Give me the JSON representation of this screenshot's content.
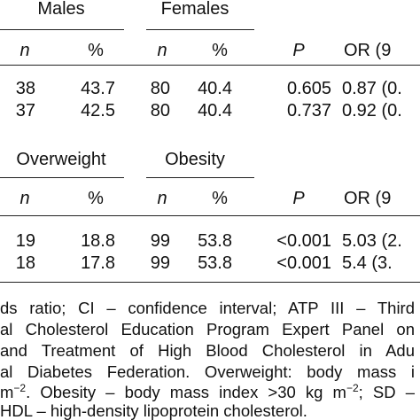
{
  "blocks": [
    {
      "groups": [
        "Males",
        "Females"
      ],
      "columns": [
        "n",
        "%",
        "n",
        "%",
        "P",
        "OR (9"
      ],
      "rows": [
        [
          "38",
          "43.7",
          "80",
          "40.4",
          "0.605",
          "0.87 (0."
        ],
        [
          "37",
          "42.5",
          "80",
          "40.4",
          "0.737",
          "0.92 (0."
        ]
      ]
    },
    {
      "groups": [
        "Overweight",
        "Obesity"
      ],
      "columns": [
        "n",
        "%",
        "n",
        "%",
        "P",
        "OR (9"
      ],
      "rows": [
        [
          "19",
          "18.8",
          "99",
          "53.8",
          "<0.001",
          "5.03 (2."
        ],
        [
          "18",
          "17.8",
          "99",
          "53.8",
          "<0.001",
          "5.4 (3."
        ]
      ]
    }
  ],
  "footnote": [
    "ds ratio; CI – confidence interval; ATP III – Third",
    "al Cholesterol Education Program Expert Panel on",
    "and Treatment of High Blood Cholesterol in Adu",
    "al Diabetes Federation. Overweight: body mass i",
    "HDL – high-density lipoprotein cholesterol."
  ],
  "footnote_line5": [
    "m",
    "−2",
    ". Obesity – body mass index >30 kg m",
    "−2",
    "; SD –"
  ]
}
